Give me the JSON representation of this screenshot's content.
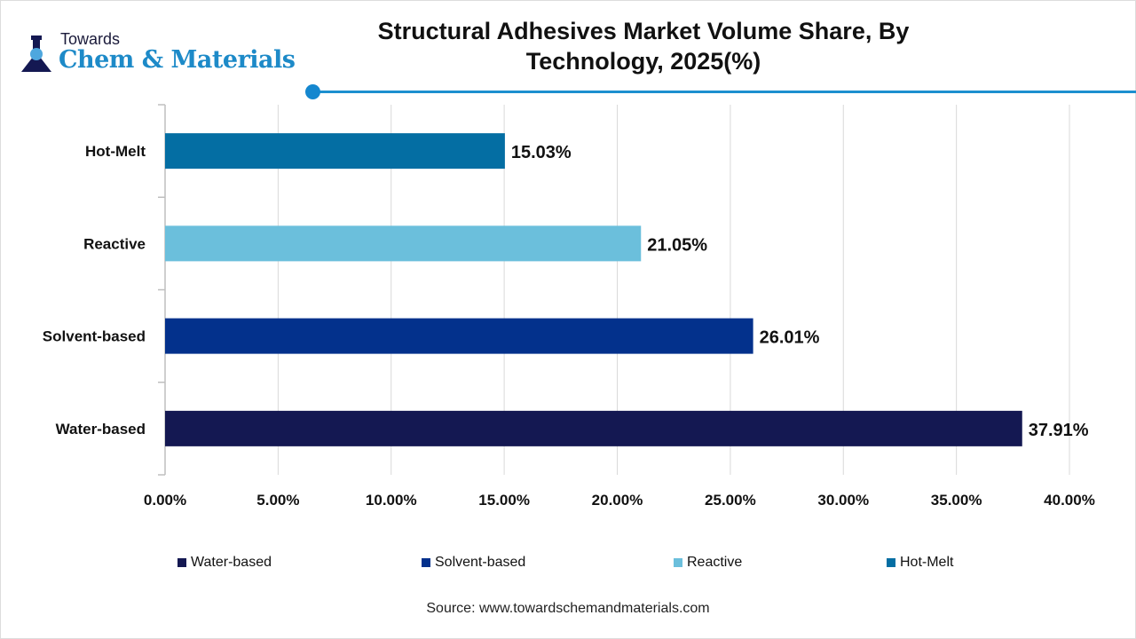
{
  "logo": {
    "line1": "Towards",
    "line2": "Chem & Materials",
    "accent": "#1d8ac8"
  },
  "source": "Source: www.towardschemandmaterials.com",
  "chart_data": {
    "type": "bar",
    "orientation": "horizontal",
    "title": "Structural Adhesives Market Volume Share, By Technology, 2025(%)",
    "categories": [
      "Hot-Melt",
      "Reactive",
      "Solvent-based",
      "Water-based"
    ],
    "values": [
      15.03,
      21.05,
      26.01,
      37.91
    ],
    "value_labels": [
      "15.03%",
      "21.05%",
      "26.01%",
      "37.91%"
    ],
    "colors": [
      "#046ea3",
      "#6bbfdc",
      "#03318c",
      "#141852"
    ],
    "xlim": [
      0,
      40
    ],
    "xticks": [
      "0.00%",
      "5.00%",
      "10.00%",
      "15.00%",
      "20.00%",
      "25.00%",
      "30.00%",
      "35.00%",
      "40.00%"
    ],
    "grid": "vertical",
    "legend_position": "bottom",
    "legend": [
      {
        "label": "Water-based",
        "color": "#141852"
      },
      {
        "label": "Solvent-based",
        "color": "#03318c"
      },
      {
        "label": "Reactive",
        "color": "#6bbfdc"
      },
      {
        "label": "Hot-Melt",
        "color": "#046ea3"
      }
    ]
  }
}
